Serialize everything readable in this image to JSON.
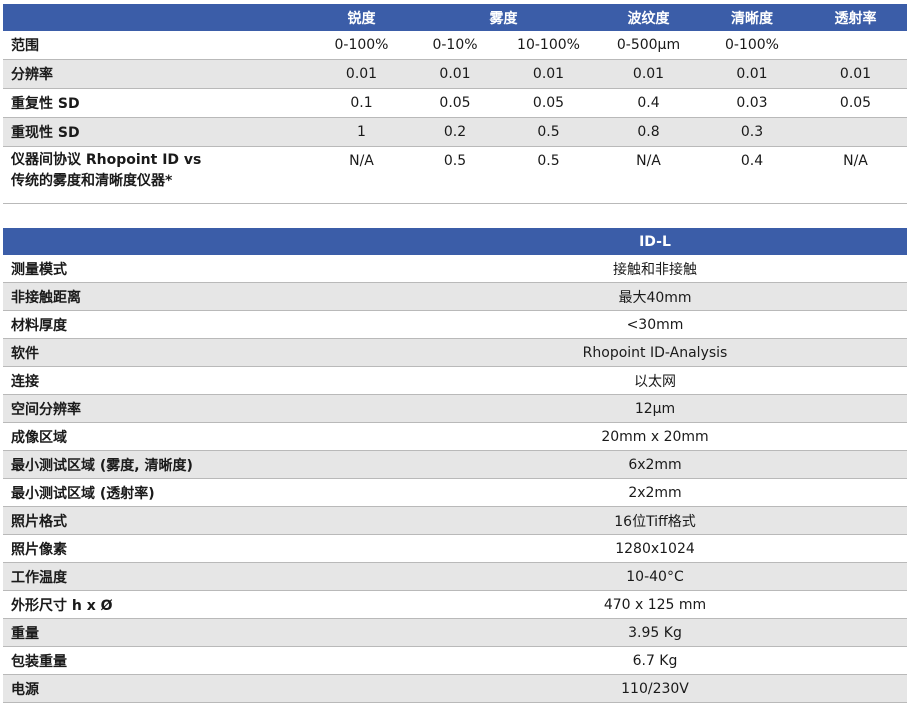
{
  "table1": {
    "headers": [
      "",
      "锐度",
      "雾度",
      "",
      "波纹度",
      "清晰度",
      "透射率"
    ],
    "rows": [
      {
        "label": "范围",
        "cells": [
          "0-100%",
          "0-10%",
          "10-100%",
          "0-500µm",
          "0-100%",
          ""
        ]
      },
      {
        "label": "分辨率",
        "cells": [
          "0.01",
          "0.01",
          "0.01",
          "0.01",
          "0.01",
          "0.01"
        ]
      },
      {
        "label": "重复性 SD",
        "cells": [
          "0.1",
          "0.05",
          "0.05",
          "0.4",
          "0.03",
          "0.05"
        ]
      },
      {
        "label": "重现性 SD",
        "cells": [
          "1",
          "0.2",
          "0.5",
          "0.8",
          "0.3",
          ""
        ]
      },
      {
        "label_line1": "仪器间协议 Rhopoint ID vs",
        "label_line2": "传统的雾度和清晰度仪器*",
        "cells": [
          "N/A",
          "0.5",
          "0.5",
          "N/A",
          "0.4",
          "N/A"
        ]
      }
    ]
  },
  "table2": {
    "header": "ID-L",
    "rows": [
      {
        "label": "测量模式",
        "value": "接触和非接触"
      },
      {
        "label": "非接触距离",
        "value": "最大40mm"
      },
      {
        "label": "材料厚度",
        "value": "<30mm"
      },
      {
        "label": "软件",
        "value": "Rhopoint ID-Analysis"
      },
      {
        "label": "连接",
        "value": "以太网"
      },
      {
        "label": "空间分辨率",
        "value": "12µm"
      },
      {
        "label": "成像区域",
        "value": "20mm x 20mm"
      },
      {
        "label": "最小测试区域 (雾度, 清晰度)",
        "value": "6x2mm"
      },
      {
        "label": "最小测试区域 (透射率)",
        "value": "2x2mm"
      },
      {
        "label": "照片格式",
        "value": "16位Tiff格式"
      },
      {
        "label": "照片像素",
        "value": "1280x1024"
      },
      {
        "label": "工作温度",
        "value": "10-40°C"
      },
      {
        "label": "外形尺寸 h x Ø",
        "value": "470 x 125 mm"
      },
      {
        "label": "重量",
        "value": "3.95 Kg"
      },
      {
        "label": "包装重量",
        "value": "6.7 Kg"
      },
      {
        "label": "电源",
        "value": "110/230V"
      }
    ]
  }
}
